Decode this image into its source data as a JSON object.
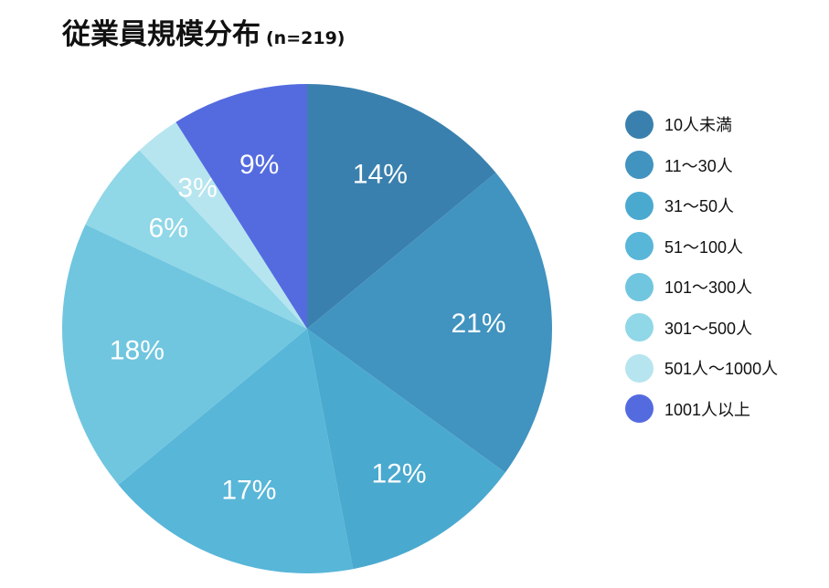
{
  "chart_data": {
    "type": "pie",
    "title": "従業員規模分布",
    "subtitle": "(n=219)",
    "categories": [
      "10人未満",
      "11〜30人",
      "31〜50人",
      "51〜100人",
      "101〜300人",
      "301〜500人",
      "501人〜1000人",
      "1001人以上"
    ],
    "values": [
      14,
      21,
      12,
      17,
      18,
      6,
      3,
      9
    ],
    "labels": [
      "14%",
      "21%",
      "12%",
      "17%",
      "18%",
      "6%",
      "3%",
      "9%"
    ],
    "colors": [
      "#3a80ae",
      "#4193c0",
      "#4aa9cf",
      "#58b6d8",
      "#70c6df",
      "#90d7e7",
      "#b6e5ef",
      "#546be0"
    ],
    "legend_position": "right"
  }
}
